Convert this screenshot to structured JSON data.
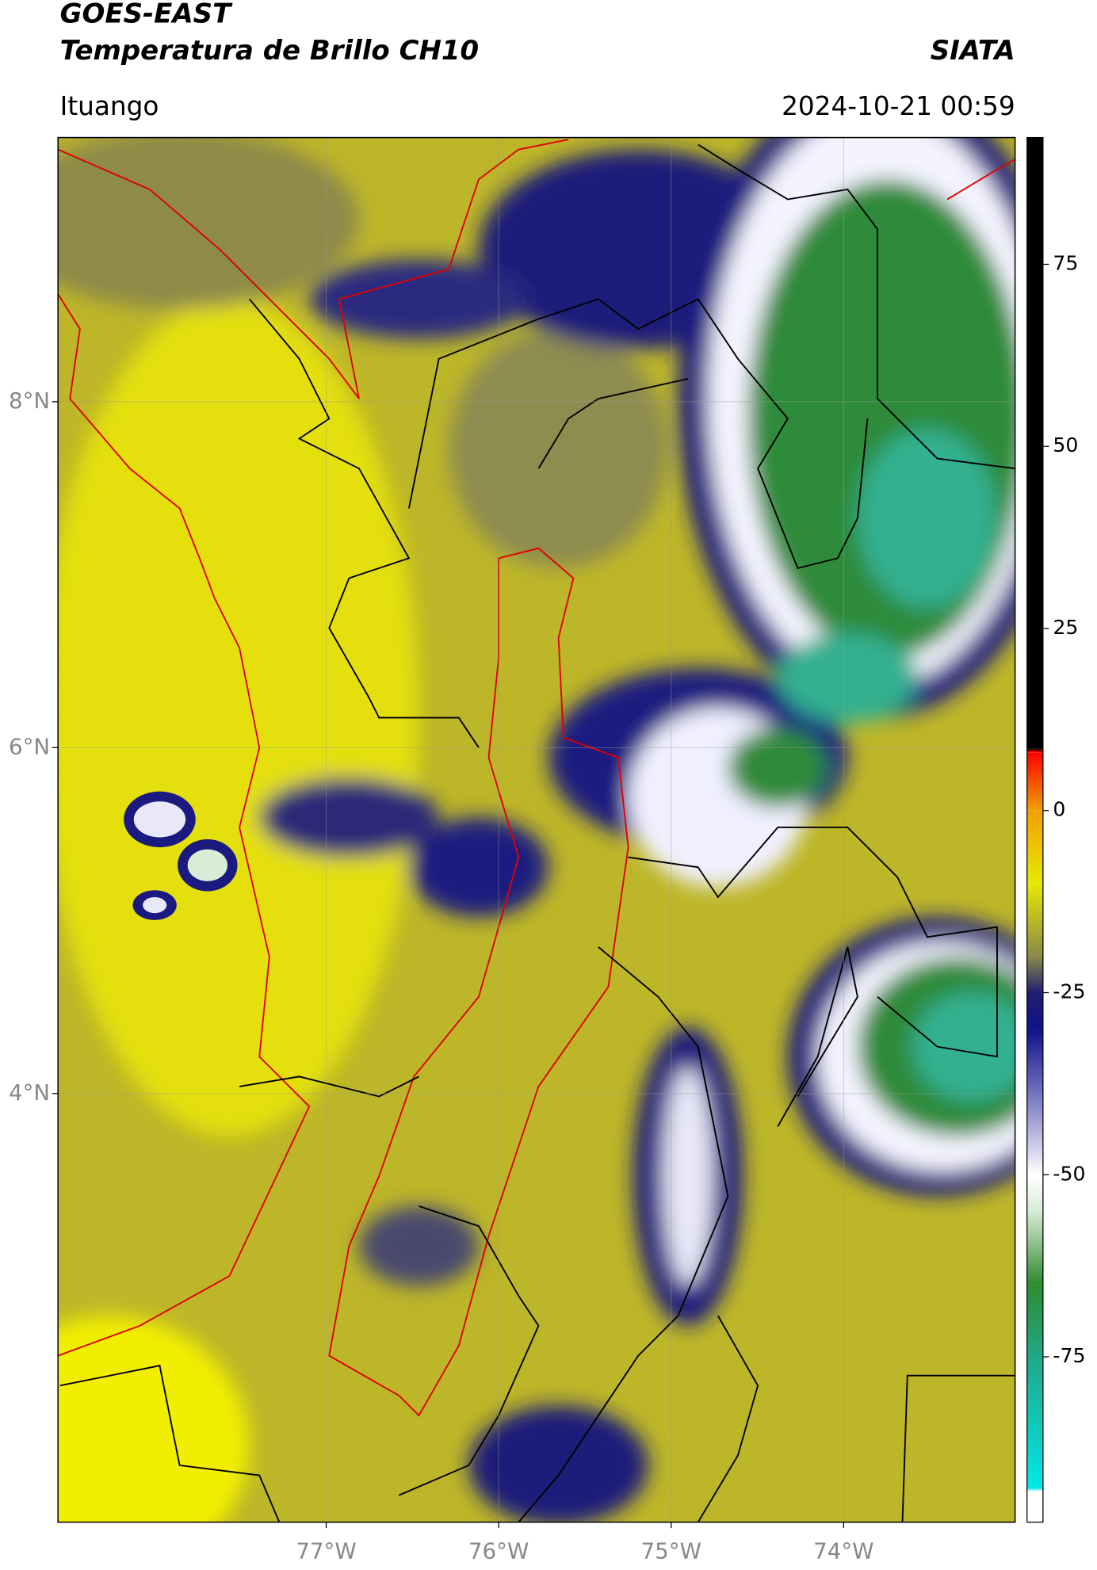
{
  "header": {
    "title": "GOES-EAST",
    "subtitle": "Temperatura de Brillo CH10",
    "brand": "SIATA",
    "location": "Ituango",
    "datetime": "2024-10-21 00:59"
  },
  "map": {
    "type": "map",
    "xlim": [
      -78.555,
      -73.006
    ],
    "ylim": [
      1.522,
      9.527
    ],
    "xticks": [
      {
        "value": -77,
        "label": "77°W"
      },
      {
        "value": -76,
        "label": "76°W"
      },
      {
        "value": -75,
        "label": "75°W"
      },
      {
        "value": -74,
        "label": "74°W"
      }
    ],
    "yticks": [
      {
        "value": 8,
        "label": "8°N"
      },
      {
        "value": 6,
        "label": "6°N"
      },
      {
        "value": 4,
        "label": "4°N"
      }
    ],
    "grid": true
  },
  "colorbar": {
    "lim": [
      -97.7,
      92.4
    ],
    "ticks": [
      75,
      50,
      25,
      0,
      -25,
      -50,
      -75
    ],
    "stops": [
      {
        "value": -97.7,
        "color": "#ffffff"
      },
      {
        "value": -93.5,
        "color": "#ffffff"
      },
      {
        "value": -93,
        "color": "#00e8e8"
      },
      {
        "value": -75,
        "color": "#20a888"
      },
      {
        "value": -65,
        "color": "#2e8b2e"
      },
      {
        "value": -55,
        "color": "#d8ecd8"
      },
      {
        "value": -50,
        "color": "#ffffff"
      },
      {
        "value": -40,
        "color": "#8080c8"
      },
      {
        "value": -30,
        "color": "#10108a"
      },
      {
        "value": -25,
        "color": "#202070"
      },
      {
        "value": -20,
        "color": "#8a8a48"
      },
      {
        "value": -10,
        "color": "#e8e800"
      },
      {
        "value": 0,
        "color": "#f0a000"
      },
      {
        "value": 8,
        "color": "#ff0000"
      },
      {
        "value": 8.5,
        "color": "#000000"
      },
      {
        "value": 92.4,
        "color": "#000000"
      }
    ]
  }
}
